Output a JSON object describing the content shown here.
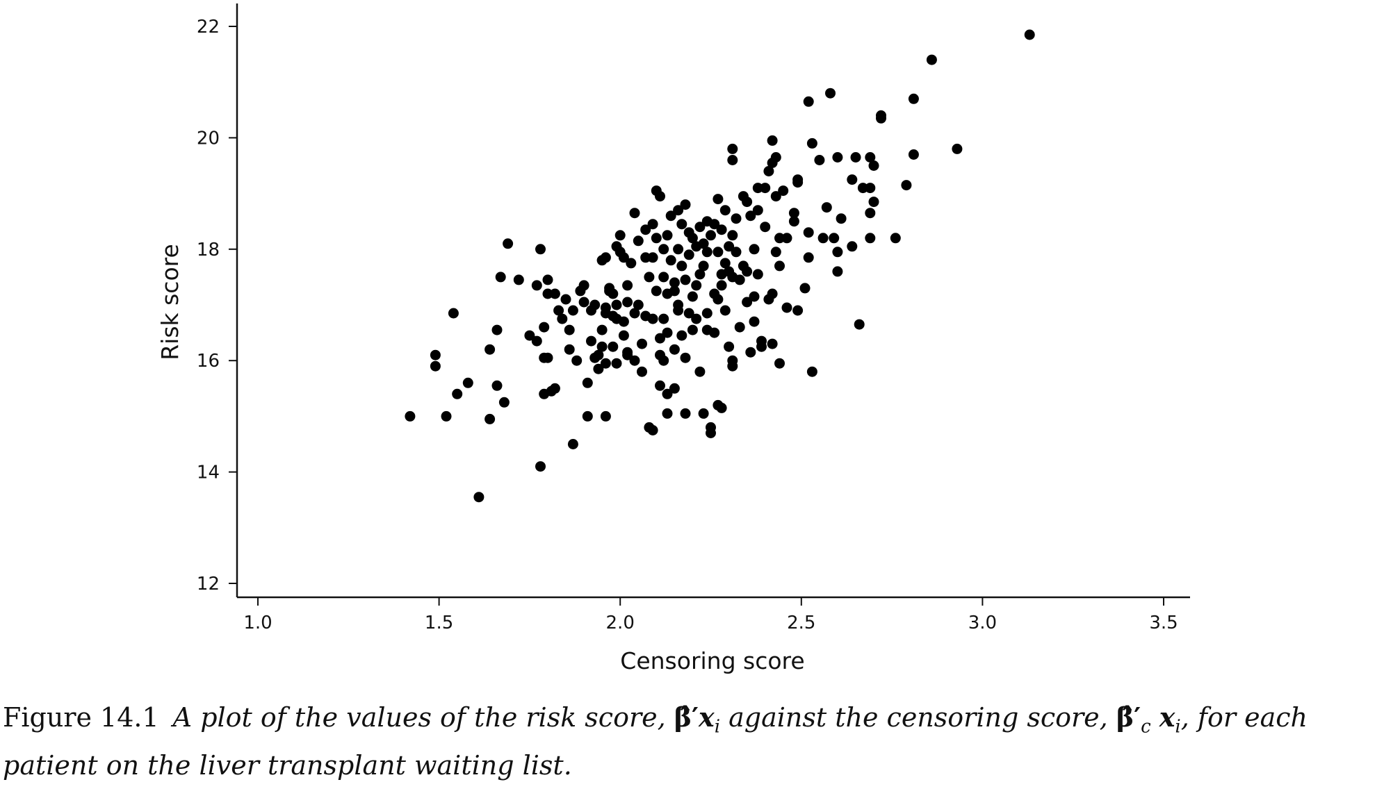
{
  "chart_data": {
    "type": "scatter",
    "xlabel": "Censoring score",
    "ylabel": "Risk score",
    "xlim": [
      1.0,
      3.5
    ],
    "ylim": [
      12,
      22
    ],
    "xticks": [
      "1.0",
      "1.5",
      "2.0",
      "2.5",
      "3.0",
      "3.5"
    ],
    "yticks": [
      "12",
      "14",
      "16",
      "18",
      "20",
      "22"
    ],
    "grid": false,
    "points": [
      [
        1.42,
        15.0
      ],
      [
        1.49,
        15.9
      ],
      [
        1.49,
        16.1
      ],
      [
        1.52,
        15.0
      ],
      [
        1.54,
        16.85
      ],
      [
        1.55,
        15.4
      ],
      [
        1.58,
        15.6
      ],
      [
        1.61,
        13.55
      ],
      [
        1.64,
        14.95
      ],
      [
        1.64,
        16.2
      ],
      [
        1.66,
        16.55
      ],
      [
        1.66,
        15.55
      ],
      [
        1.67,
        17.5
      ],
      [
        1.68,
        15.25
      ],
      [
        1.69,
        18.1
      ],
      [
        1.72,
        17.45
      ],
      [
        1.75,
        16.45
      ],
      [
        1.77,
        17.35
      ],
      [
        1.77,
        16.35
      ],
      [
        1.78,
        18.0
      ],
      [
        1.78,
        14.1
      ],
      [
        1.79,
        15.4
      ],
      [
        1.79,
        16.05
      ],
      [
        1.79,
        16.6
      ],
      [
        1.8,
        17.45
      ],
      [
        1.8,
        17.2
      ],
      [
        1.8,
        16.05
      ],
      [
        1.81,
        15.45
      ],
      [
        1.82,
        15.5
      ],
      [
        1.82,
        17.2
      ],
      [
        1.83,
        16.9
      ],
      [
        1.84,
        16.75
      ],
      [
        1.85,
        17.1
      ],
      [
        1.86,
        16.55
      ],
      [
        1.86,
        16.2
      ],
      [
        1.87,
        14.5
      ],
      [
        1.87,
        16.9
      ],
      [
        1.88,
        16.0
      ],
      [
        1.89,
        17.25
      ],
      [
        1.9,
        17.35
      ],
      [
        1.9,
        17.05
      ],
      [
        1.91,
        15.6
      ],
      [
        1.91,
        15.0
      ],
      [
        1.92,
        16.9
      ],
      [
        1.92,
        16.35
      ],
      [
        1.93,
        17.0
      ],
      [
        1.93,
        16.05
      ],
      [
        1.94,
        16.1
      ],
      [
        1.94,
        15.85
      ],
      [
        1.95,
        17.8
      ],
      [
        1.95,
        16.55
      ],
      [
        1.95,
        16.25
      ],
      [
        1.96,
        17.85
      ],
      [
        1.96,
        16.95
      ],
      [
        1.96,
        16.85
      ],
      [
        1.96,
        15.95
      ],
      [
        1.96,
        15.0
      ],
      [
        1.97,
        17.3
      ],
      [
        1.97,
        17.25
      ],
      [
        1.98,
        17.2
      ],
      [
        1.98,
        16.8
      ],
      [
        1.98,
        16.25
      ],
      [
        1.99,
        18.05
      ],
      [
        1.99,
        17.0
      ],
      [
        1.99,
        16.75
      ],
      [
        1.99,
        15.95
      ],
      [
        2.0,
        18.25
      ],
      [
        2.0,
        17.95
      ],
      [
        2.01,
        17.85
      ],
      [
        2.01,
        16.7
      ],
      [
        2.01,
        16.45
      ],
      [
        2.02,
        16.1
      ],
      [
        2.02,
        17.35
      ],
      [
        2.02,
        17.05
      ],
      [
        2.02,
        16.15
      ],
      [
        2.03,
        17.75
      ],
      [
        2.04,
        16.85
      ],
      [
        2.04,
        16.0
      ],
      [
        2.04,
        18.65
      ],
      [
        2.05,
        18.15
      ],
      [
        2.05,
        17.0
      ],
      [
        2.06,
        16.3
      ],
      [
        2.06,
        15.8
      ],
      [
        2.07,
        18.35
      ],
      [
        2.07,
        17.85
      ],
      [
        2.07,
        16.8
      ],
      [
        2.08,
        17.5
      ],
      [
        2.08,
        14.8
      ],
      [
        2.09,
        18.45
      ],
      [
        2.09,
        17.85
      ],
      [
        2.09,
        16.75
      ],
      [
        2.09,
        14.75
      ],
      [
        2.1,
        19.05
      ],
      [
        2.1,
        18.2
      ],
      [
        2.1,
        17.25
      ],
      [
        2.11,
        18.95
      ],
      [
        2.11,
        16.4
      ],
      [
        2.11,
        16.1
      ],
      [
        2.11,
        15.55
      ],
      [
        2.12,
        18.0
      ],
      [
        2.12,
        17.5
      ],
      [
        2.12,
        16.75
      ],
      [
        2.12,
        16.0
      ],
      [
        2.13,
        18.25
      ],
      [
        2.13,
        17.2
      ],
      [
        2.13,
        16.5
      ],
      [
        2.13,
        15.4
      ],
      [
        2.13,
        15.05
      ],
      [
        2.14,
        18.6
      ],
      [
        2.14,
        17.8
      ],
      [
        2.15,
        17.4
      ],
      [
        2.15,
        17.25
      ],
      [
        2.15,
        16.2
      ],
      [
        2.15,
        15.5
      ],
      [
        2.16,
        18.7
      ],
      [
        2.16,
        18.0
      ],
      [
        2.16,
        17.0
      ],
      [
        2.16,
        16.9
      ],
      [
        2.17,
        18.45
      ],
      [
        2.17,
        17.7
      ],
      [
        2.17,
        16.45
      ],
      [
        2.18,
        18.8
      ],
      [
        2.18,
        17.45
      ],
      [
        2.18,
        16.05
      ],
      [
        2.18,
        15.05
      ],
      [
        2.19,
        18.3
      ],
      [
        2.19,
        17.9
      ],
      [
        2.19,
        16.85
      ],
      [
        2.2,
        18.2
      ],
      [
        2.2,
        17.15
      ],
      [
        2.2,
        16.55
      ],
      [
        2.21,
        18.05
      ],
      [
        2.21,
        17.35
      ],
      [
        2.21,
        16.75
      ],
      [
        2.22,
        18.4
      ],
      [
        2.22,
        17.55
      ],
      [
        2.22,
        15.8
      ],
      [
        2.23,
        18.1
      ],
      [
        2.23,
        17.7
      ],
      [
        2.23,
        15.05
      ],
      [
        2.24,
        18.5
      ],
      [
        2.24,
        17.95
      ],
      [
        2.24,
        16.85
      ],
      [
        2.24,
        16.55
      ],
      [
        2.25,
        14.8
      ],
      [
        2.25,
        14.7
      ],
      [
        2.25,
        18.25
      ],
      [
        2.26,
        18.45
      ],
      [
        2.26,
        17.2
      ],
      [
        2.26,
        16.5
      ],
      [
        2.27,
        18.9
      ],
      [
        2.27,
        17.95
      ],
      [
        2.27,
        17.1
      ],
      [
        2.27,
        15.2
      ],
      [
        2.28,
        18.35
      ],
      [
        2.28,
        17.55
      ],
      [
        2.28,
        17.35
      ],
      [
        2.28,
        15.15
      ],
      [
        2.29,
        18.7
      ],
      [
        2.29,
        17.75
      ],
      [
        2.29,
        16.9
      ],
      [
        2.3,
        18.05
      ],
      [
        2.3,
        17.6
      ],
      [
        2.3,
        16.25
      ],
      [
        2.31,
        19.6
      ],
      [
        2.31,
        19.8
      ],
      [
        2.31,
        18.25
      ],
      [
        2.31,
        17.5
      ],
      [
        2.31,
        16.0
      ],
      [
        2.31,
        15.9
      ],
      [
        2.32,
        18.55
      ],
      [
        2.32,
        17.95
      ],
      [
        2.33,
        17.45
      ],
      [
        2.33,
        16.6
      ],
      [
        2.34,
        18.95
      ],
      [
        2.34,
        17.7
      ],
      [
        2.35,
        18.85
      ],
      [
        2.35,
        17.6
      ],
      [
        2.35,
        17.05
      ],
      [
        2.36,
        16.15
      ],
      [
        2.36,
        18.6
      ],
      [
        2.37,
        18.0
      ],
      [
        2.37,
        16.7
      ],
      [
        2.37,
        17.15
      ],
      [
        2.38,
        19.1
      ],
      [
        2.38,
        18.7
      ],
      [
        2.38,
        17.55
      ],
      [
        2.39,
        16.35
      ],
      [
        2.39,
        16.25
      ],
      [
        2.4,
        19.1
      ],
      [
        2.4,
        18.4
      ],
      [
        2.41,
        19.4
      ],
      [
        2.41,
        17.1
      ],
      [
        2.42,
        19.95
      ],
      [
        2.42,
        19.55
      ],
      [
        2.42,
        17.2
      ],
      [
        2.42,
        16.3
      ],
      [
        2.43,
        19.65
      ],
      [
        2.43,
        18.95
      ],
      [
        2.43,
        17.95
      ],
      [
        2.44,
        18.2
      ],
      [
        2.44,
        17.7
      ],
      [
        2.44,
        15.95
      ],
      [
        2.45,
        19.05
      ],
      [
        2.46,
        18.2
      ],
      [
        2.46,
        16.95
      ],
      [
        2.48,
        18.65
      ],
      [
        2.48,
        18.5
      ],
      [
        2.49,
        19.25
      ],
      [
        2.49,
        19.2
      ],
      [
        2.49,
        16.9
      ],
      [
        2.51,
        17.3
      ],
      [
        2.52,
        20.65
      ],
      [
        2.52,
        18.3
      ],
      [
        2.52,
        17.85
      ],
      [
        2.53,
        19.9
      ],
      [
        2.53,
        15.8
      ],
      [
        2.55,
        19.6
      ],
      [
        2.56,
        18.2
      ],
      [
        2.57,
        18.75
      ],
      [
        2.58,
        20.8
      ],
      [
        2.59,
        18.2
      ],
      [
        2.6,
        19.65
      ],
      [
        2.6,
        17.95
      ],
      [
        2.6,
        17.6
      ],
      [
        2.61,
        18.55
      ],
      [
        2.64,
        19.25
      ],
      [
        2.64,
        18.05
      ],
      [
        2.65,
        19.65
      ],
      [
        2.66,
        16.65
      ],
      [
        2.67,
        19.1
      ],
      [
        2.69,
        19.65
      ],
      [
        2.69,
        19.1
      ],
      [
        2.69,
        18.65
      ],
      [
        2.69,
        18.2
      ],
      [
        2.7,
        19.5
      ],
      [
        2.7,
        18.85
      ],
      [
        2.72,
        20.4
      ],
      [
        2.72,
        20.35
      ],
      [
        2.76,
        18.2
      ],
      [
        2.79,
        19.15
      ],
      [
        2.81,
        20.7
      ],
      [
        2.81,
        19.7
      ],
      [
        2.86,
        21.4
      ],
      [
        2.93,
        19.8
      ],
      [
        3.13,
        21.85
      ]
    ]
  },
  "caption": {
    "figure_number": "Figure 14.1",
    "text_1": "A plot of the values of the risk score, ",
    "text_2": " against the censoring score, ",
    "text_3": ", for each patient on the liver transplant waiting list."
  }
}
